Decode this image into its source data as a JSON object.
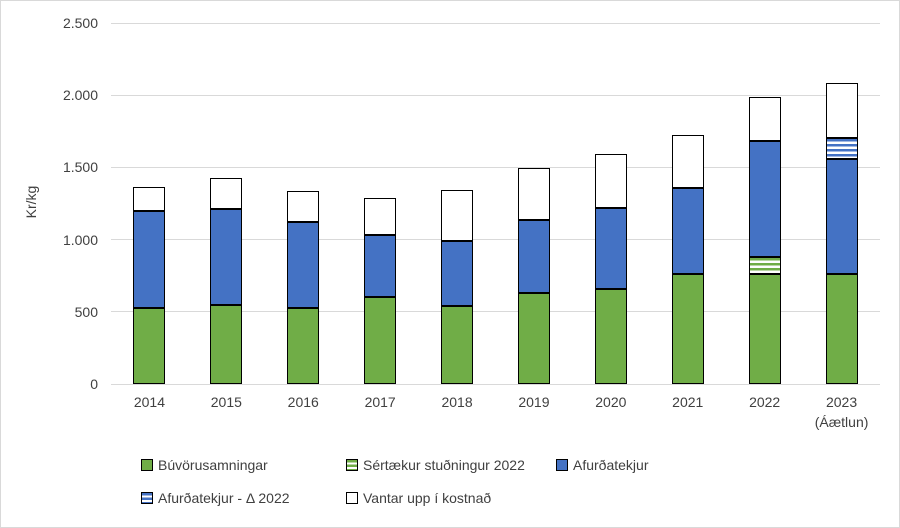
{
  "window": {
    "background": "#ffffff",
    "border_color": "#d9d9d9"
  },
  "chart_data": {
    "type": "bar",
    "stacked": true,
    "title": "",
    "xlabel": "",
    "ylabel": "Kr/kg",
    "ylim": [
      0,
      2500
    ],
    "grid": true,
    "legend_position": "bottom-left",
    "yticks": [
      {
        "value": 0,
        "label": "0"
      },
      {
        "value": 500,
        "label": "500"
      },
      {
        "value": 1000,
        "label": "1.000"
      },
      {
        "value": 1500,
        "label": "1.500"
      },
      {
        "value": 2000,
        "label": "2.000"
      },
      {
        "value": 2500,
        "label": "2.500"
      }
    ],
    "categories": [
      {
        "label": "2014",
        "sublabel": ""
      },
      {
        "label": "2015",
        "sublabel": ""
      },
      {
        "label": "2016",
        "sublabel": ""
      },
      {
        "label": "2017",
        "sublabel": ""
      },
      {
        "label": "2018",
        "sublabel": ""
      },
      {
        "label": "2019",
        "sublabel": ""
      },
      {
        "label": "2020",
        "sublabel": ""
      },
      {
        "label": "2021",
        "sublabel": ""
      },
      {
        "label": "2022",
        "sublabel": ""
      },
      {
        "label": "2023",
        "sublabel": "(Áætlun)"
      }
    ],
    "series": [
      {
        "name": "Búvörusamningar",
        "style": "solid-green",
        "color": "#70AD47",
        "values": [
          525,
          550,
          525,
          600,
          540,
          630,
          655,
          760,
          765,
          765
        ]
      },
      {
        "name": "Sértækur stuðningur 2022",
        "style": "striped-green",
        "color": "#70AD47",
        "values": [
          0,
          0,
          0,
          0,
          0,
          0,
          0,
          0,
          115,
          0
        ]
      },
      {
        "name": "Afurðatekjur",
        "style": "solid-blue",
        "color": "#4472C4",
        "values": [
          670,
          665,
          595,
          430,
          450,
          505,
          565,
          595,
          800,
          790
        ]
      },
      {
        "name": "Afurðatekjur - Δ 2022",
        "style": "striped-blue",
        "color": "#4472C4",
        "values": [
          0,
          0,
          0,
          0,
          0,
          0,
          0,
          0,
          0,
          150
        ]
      },
      {
        "name": "Vantar upp í kostnað",
        "style": "white",
        "color": "#FFFFFF",
        "values": [
          170,
          210,
          220,
          260,
          355,
          360,
          370,
          370,
          305,
          380
        ]
      }
    ],
    "colors": {
      "green": "#70AD47",
      "blue": "#4472C4",
      "segment_border": "#000000",
      "gridline": "#D9D9D9",
      "axis_text": "#404040"
    },
    "legend_rows": [
      [
        0,
        1,
        2
      ],
      [
        3,
        4
      ]
    ]
  }
}
